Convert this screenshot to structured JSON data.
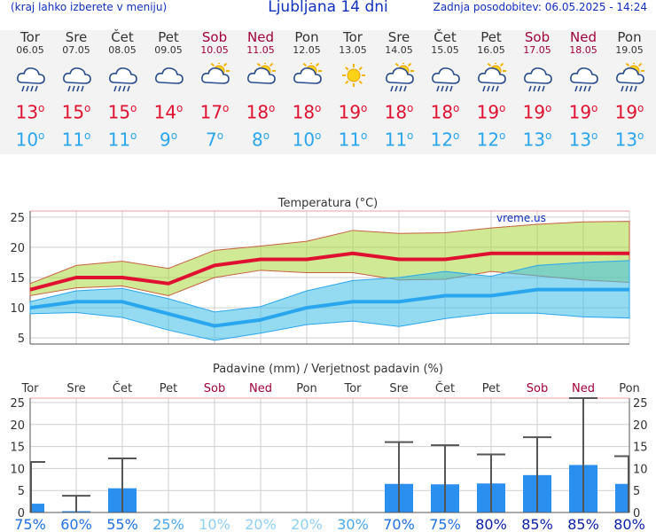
{
  "header": {
    "left_note": "(kraj lahko izberete v meniju)",
    "title": "Ljubljana 14 dni",
    "updated": "Zadnja posodobitev: 06.05.2025 - 14:24"
  },
  "colors": {
    "max_temp": "#e01030",
    "min_temp": "#2aa6ee",
    "weekend": "#a0003a",
    "bars": "#2a8fee"
  },
  "days": [
    {
      "name": "Tor",
      "date": "06.05",
      "icon": "cloud-rain-icon",
      "tmax": "13",
      "tmin": "10",
      "weekend": false
    },
    {
      "name": "Sre",
      "date": "07.05",
      "icon": "cloud-rain-icon",
      "tmax": "15",
      "tmin": "11",
      "weekend": false
    },
    {
      "name": "Čet",
      "date": "08.05",
      "icon": "cloud-rain-icon",
      "tmax": "15",
      "tmin": "11",
      "weekend": false
    },
    {
      "name": "Pet",
      "date": "09.05",
      "icon": "cloud-icon",
      "tmax": "14",
      "tmin": "9",
      "weekend": false
    },
    {
      "name": "Sob",
      "date": "10.05",
      "icon": "sun-cloud-icon",
      "tmax": "17",
      "tmin": "7",
      "weekend": true
    },
    {
      "name": "Ned",
      "date": "11.05",
      "icon": "sun-cloud-icon",
      "tmax": "18",
      "tmin": "8",
      "weekend": true
    },
    {
      "name": "Pon",
      "date": "12.05",
      "icon": "sun-cloud-icon",
      "tmax": "18",
      "tmin": "10",
      "weekend": false
    },
    {
      "name": "Tor",
      "date": "13.05",
      "icon": "sun-icon",
      "tmax": "19",
      "tmin": "11",
      "weekend": false
    },
    {
      "name": "Sre",
      "date": "14.05",
      "icon": "sun-rain-icon",
      "tmax": "18",
      "tmin": "11",
      "weekend": false
    },
    {
      "name": "Čet",
      "date": "15.05",
      "icon": "cloud-rain-icon",
      "tmax": "18",
      "tmin": "12",
      "weekend": false
    },
    {
      "name": "Pet",
      "date": "16.05",
      "icon": "sun-rain-icon",
      "tmax": "19",
      "tmin": "12",
      "weekend": false
    },
    {
      "name": "Sob",
      "date": "17.05",
      "icon": "cloud-rain-icon",
      "tmax": "19",
      "tmin": "13",
      "weekend": true
    },
    {
      "name": "Ned",
      "date": "18.05",
      "icon": "cloud-rain-icon",
      "tmax": "19",
      "tmin": "13",
      "weekend": true
    },
    {
      "name": "Pon",
      "date": "19.05",
      "icon": "sun-rain-icon",
      "tmax": "19",
      "tmin": "13",
      "weekend": false
    }
  ],
  "chart_data": [
    {
      "type": "line",
      "title": "Temperatura (°C)",
      "watermark": "vreme.us",
      "x": [
        "Tor",
        "Sre",
        "Čet",
        "Pet",
        "Sob",
        "Ned",
        "Pon",
        "Tor",
        "Sre",
        "Čet",
        "Pet",
        "Sob",
        "Ned",
        "Pon"
      ],
      "ylim": [
        4,
        26
      ],
      "yticks": [
        5,
        10,
        15,
        20,
        25
      ],
      "grid": true,
      "series": [
        {
          "values": [
            13,
            15,
            15,
            14,
            17,
            18,
            18,
            19,
            18,
            18,
            19,
            19,
            19,
            19
          ]
        },
        {
          "values": [
            10,
            11,
            11,
            9,
            7,
            8,
            10,
            11,
            11,
            12,
            12,
            13,
            13,
            13
          ]
        }
      ],
      "max_band_upper": [
        14,
        17,
        17.7,
        16.5,
        19.5,
        20.2,
        21,
        22.8,
        22.3,
        22.4,
        23.2,
        23.8,
        24.2,
        24.3
      ],
      "max_band_lower": [
        12,
        13.3,
        13.6,
        12,
        15,
        16.2,
        15.8,
        15.8,
        14.6,
        14.7,
        16,
        15.3,
        14.6,
        14.2
      ],
      "min_band_upper": [
        11,
        12.8,
        13.2,
        11.5,
        9.3,
        10.2,
        12.8,
        14.5,
        15,
        16,
        15.2,
        17,
        17.5,
        17.8
      ],
      "min_band_lower": [
        9,
        9.2,
        8.4,
        6.3,
        4.6,
        5.8,
        7.2,
        7.8,
        6.9,
        8.2,
        9.1,
        9.1,
        8.5,
        8.3
      ]
    },
    {
      "type": "bar",
      "title": "Padavine (mm) / Verjetnost padavin (%)",
      "categories": [
        "Tor",
        "Sre",
        "Čet",
        "Pet",
        "Sob",
        "Ned",
        "Pon",
        "Tor",
        "Sre",
        "Čet",
        "Pet",
        "Sob",
        "Ned",
        "Pon"
      ],
      "ylim": [
        0,
        26
      ],
      "yticks": [
        0,
        5,
        10,
        15,
        20,
        25
      ],
      "values": [
        2,
        0.3,
        5.5,
        0,
        0,
        0,
        0,
        0,
        6.5,
        6.4,
        6.6,
        8.5,
        10.8,
        6.5
      ],
      "error_max": [
        11.5,
        3.8,
        12.3,
        0,
        0,
        0,
        0,
        0,
        16,
        15.3,
        13.2,
        17.1,
        26,
        12.8
      ],
      "probability": [
        "75%",
        "60%",
        "55%",
        "25%",
        "10%",
        "20%",
        "20%",
        "30%",
        "70%",
        "75%",
        "80%",
        "85%",
        "85%",
        "80%"
      ]
    }
  ]
}
